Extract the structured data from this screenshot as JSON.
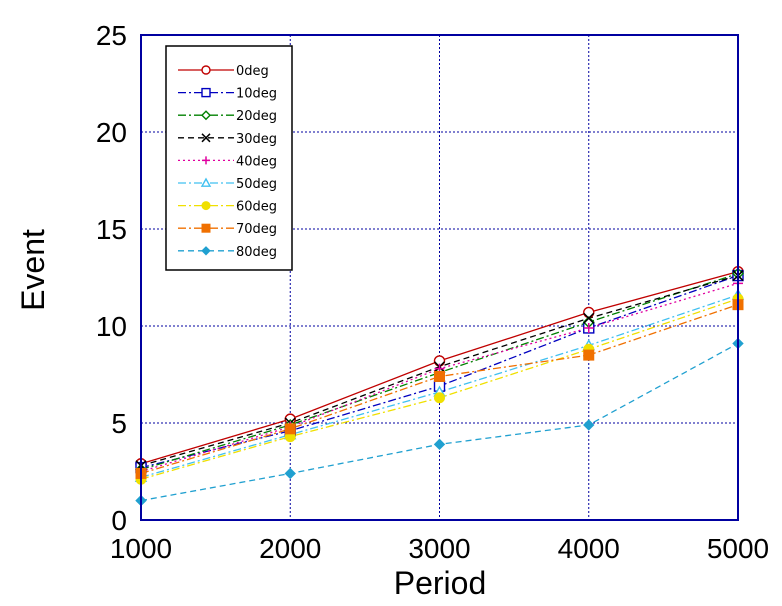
{
  "chart_data": {
    "type": "line",
    "title": "",
    "xlabel": "Period",
    "ylabel": "Event",
    "x": [
      1000,
      2000,
      3000,
      4000,
      5000
    ],
    "xlim": [
      1000,
      5000
    ],
    "ylim": [
      0,
      25
    ],
    "xticks": [
      "1000",
      "2000",
      "3000",
      "4000",
      "5000"
    ],
    "yticks": [
      "0",
      "5",
      "10",
      "15",
      "20",
      "25"
    ],
    "grid": true,
    "legend_position": "top-left",
    "frame_color": "#0000a0",
    "grid_color": "#0000a0",
    "series": [
      {
        "name": "0deg",
        "values": [
          2.9,
          5.2,
          8.2,
          10.7,
          12.8
        ],
        "color": "#c00000",
        "marker": "circle-open",
        "dash": "solid"
      },
      {
        "name": "10deg",
        "values": [
          2.7,
          4.6,
          6.9,
          9.9,
          12.6
        ],
        "color": "#0000c0",
        "marker": "square-open",
        "dash": "dash-dot"
      },
      {
        "name": "20deg",
        "values": [
          2.6,
          4.9,
          7.6,
          10.2,
          12.7
        ],
        "color": "#008000",
        "marker": "diamond-open",
        "dash": "dash-dot"
      },
      {
        "name": "30deg",
        "values": [
          2.8,
          5.0,
          7.9,
          10.4,
          12.6
        ],
        "color": "#000000",
        "marker": "x",
        "dash": "dash"
      },
      {
        "name": "40deg",
        "values": [
          2.5,
          4.8,
          7.8,
          9.9,
          12.2
        ],
        "color": "#e000a0",
        "marker": "plus",
        "dash": "dot"
      },
      {
        "name": "50deg",
        "values": [
          2.2,
          4.4,
          6.6,
          9.0,
          11.6
        ],
        "color": "#40c0f0",
        "marker": "triangle-open",
        "dash": "dash-dot"
      },
      {
        "name": "60deg",
        "values": [
          2.1,
          4.3,
          6.3,
          8.8,
          11.4
        ],
        "color": "#f0e000",
        "marker": "circle-filled",
        "dash": "dash-dot"
      },
      {
        "name": "70deg",
        "values": [
          2.4,
          4.7,
          7.4,
          8.5,
          11.1
        ],
        "color": "#f07000",
        "marker": "square-filled",
        "dash": "dash-dot"
      },
      {
        "name": "80deg",
        "values": [
          1.0,
          2.4,
          3.9,
          4.9,
          9.1
        ],
        "color": "#20a0d0",
        "marker": "diamond-filled",
        "dash": "dash"
      }
    ]
  }
}
